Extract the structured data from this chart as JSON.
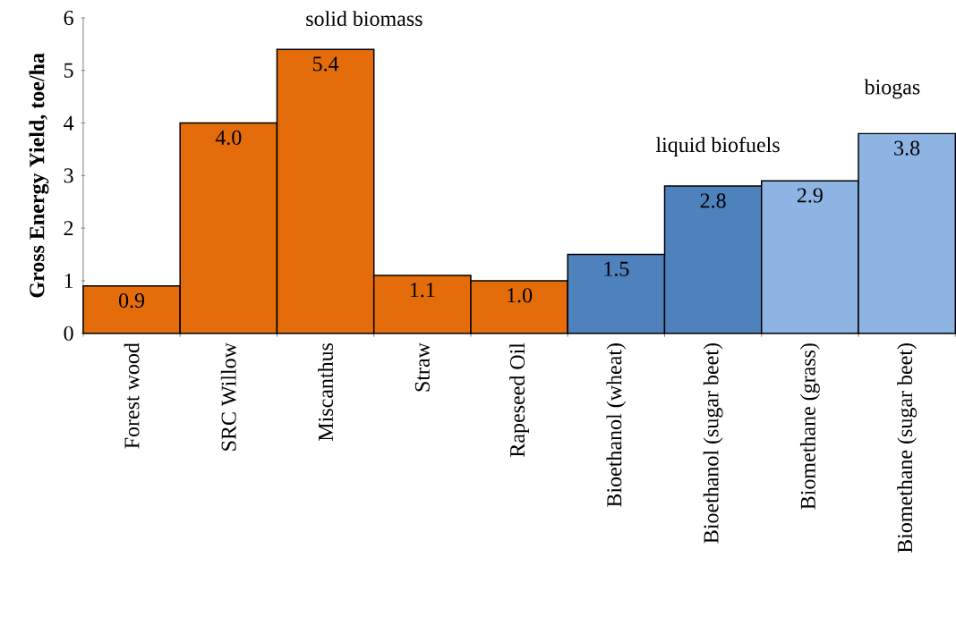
{
  "chart_data": {
    "type": "bar",
    "ylabel": "Gross Energy Yield, toe/ha",
    "categories": [
      "Forest wood",
      "SRC Willow",
      "Miscanthus",
      "Straw",
      "Rapeseed Oil",
      "Bioethanol (wheat)",
      "Bioethanol (sugar beet)",
      "Biomethane (grass)",
      "Biomethane (sugar beet)"
    ],
    "values": [
      0.9,
      4.0,
      5.4,
      1.1,
      1.0,
      1.5,
      2.8,
      2.9,
      3.8
    ],
    "value_labels": [
      "0.9",
      "4.0",
      "5.4",
      "1.1",
      "1.0",
      "1.5",
      "2.8",
      "2.9",
      "3.8"
    ],
    "colors": [
      "#e46c0a",
      "#e46c0a",
      "#e46c0a",
      "#e46c0a",
      "#e46c0a",
      "#4f81bd",
      "#4f81bd",
      "#8eb4e3",
      "#8eb4e3"
    ],
    "ylim": [
      0,
      6
    ],
    "yticks": [
      0,
      1,
      2,
      3,
      4,
      5,
      6
    ],
    "grid": false,
    "annotations": [
      "solid biomass",
      "liquid biofuels",
      "biogas"
    ]
  }
}
